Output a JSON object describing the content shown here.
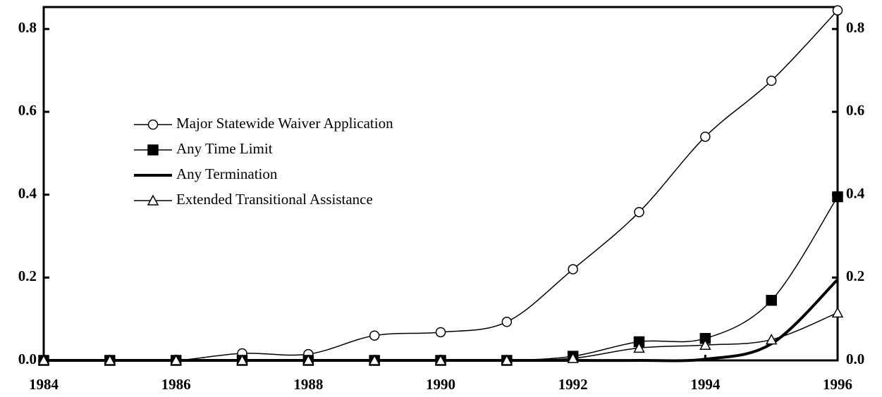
{
  "chart_data": {
    "type": "line",
    "x": [
      1984,
      1985,
      1986,
      1987,
      1988,
      1989,
      1990,
      1991,
      1992,
      1993,
      1994,
      1995,
      1996
    ],
    "series": [
      {
        "name": "Major Statewide Waiver Application",
        "color": "#000000",
        "marker": "circle-open",
        "line_width": 1.5,
        "values": [
          0,
          0,
          0,
          0.017,
          0.015,
          0.06,
          0.068,
          0.093,
          0.22,
          0.358,
          0.54,
          0.675,
          0.845
        ]
      },
      {
        "name": "Any Time Limit",
        "color": "#000000",
        "marker": "square",
        "line_width": 1.5,
        "values": [
          0,
          0,
          0,
          0,
          0,
          0,
          0,
          0,
          0.01,
          0.045,
          0.053,
          0.145,
          0.395
        ]
      },
      {
        "name": "Any Termination",
        "color": "#000000",
        "marker": "none",
        "line_width": 4,
        "values": [
          0,
          0,
          0,
          0,
          0,
          0,
          0,
          0,
          0,
          0,
          0.003,
          0.04,
          0.195
        ]
      },
      {
        "name": "Extended Transitional Assistance",
        "color": "#000000",
        "marker": "triangle-open",
        "line_width": 1.5,
        "values": [
          0,
          0,
          0,
          0,
          0,
          0,
          0,
          0,
          0.005,
          0.03,
          0.037,
          0.05,
          0.115
        ]
      }
    ],
    "xlim": [
      1984,
      1996
    ],
    "xticks": [
      1984,
      1986,
      1988,
      1990,
      1992,
      1994,
      1996
    ],
    "ylim": [
      0,
      0.853
    ],
    "yticks": [
      {
        "value": 0,
        "label": "0.0"
      },
      0.2,
      0.4,
      0.6,
      0.8
    ],
    "y2lim": [
      0,
      0.853
    ],
    "y2ticks": [
      {
        "value": 0,
        "label": "0.0"
      },
      0.2,
      0.4,
      0.6,
      0.8
    ],
    "legend": "upper left",
    "grid": false
  }
}
